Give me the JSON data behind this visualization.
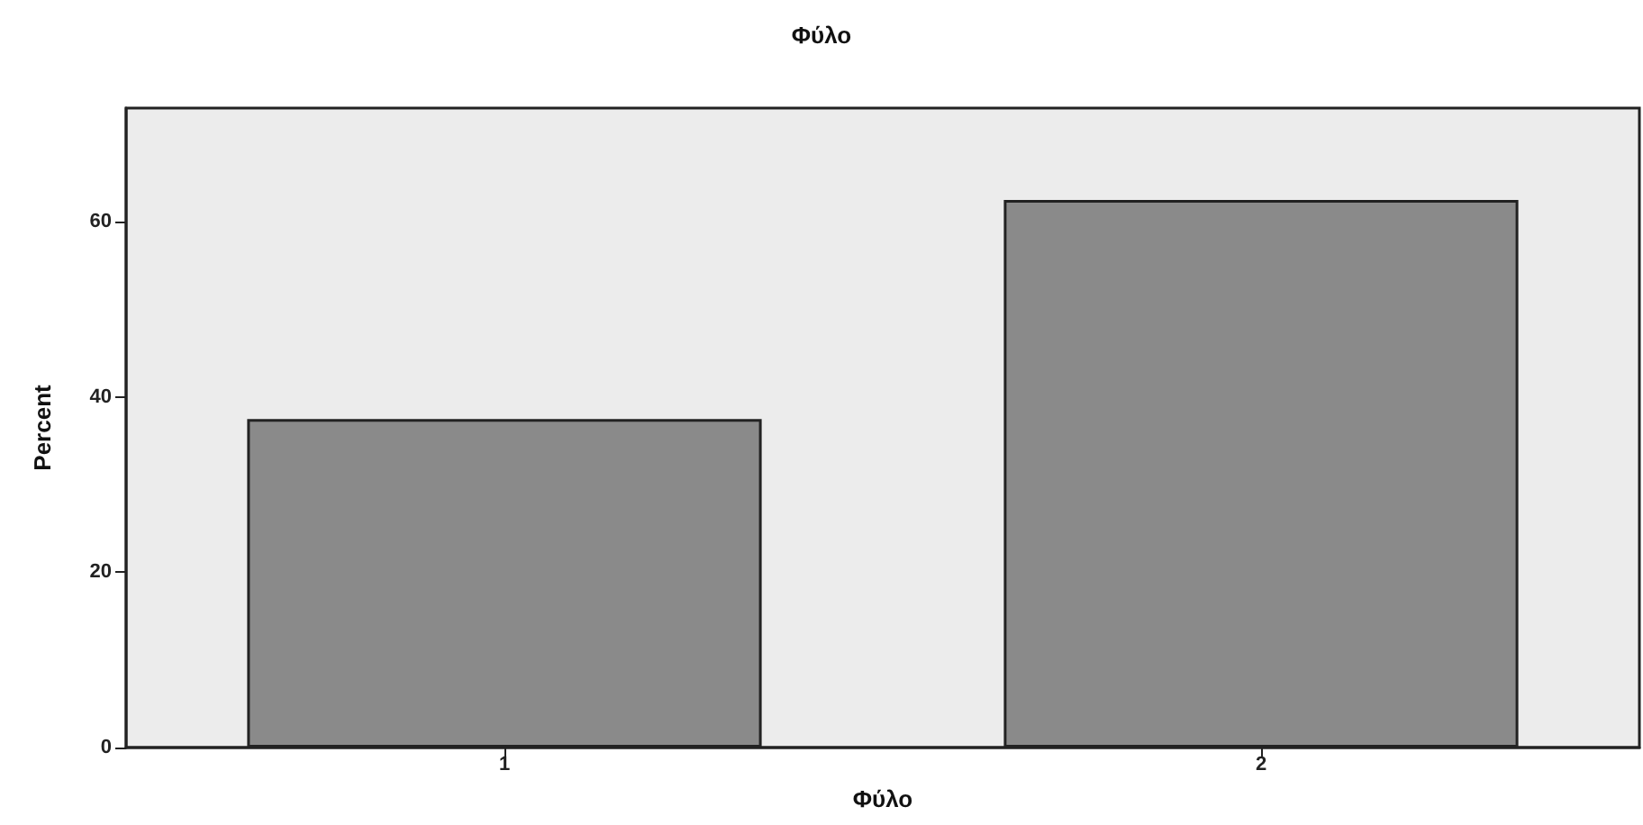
{
  "chart_data": {
    "type": "bar",
    "title": "Φύλο",
    "xlabel": "Φύλο",
    "ylabel": "Percent",
    "categories": [
      "1",
      "2"
    ],
    "values": [
      37.5,
      62.5
    ],
    "color": "#8a8a8a",
    "ylim": [
      0,
      73
    ],
    "yticks": [
      0,
      20,
      40,
      60
    ],
    "grid": false
  }
}
